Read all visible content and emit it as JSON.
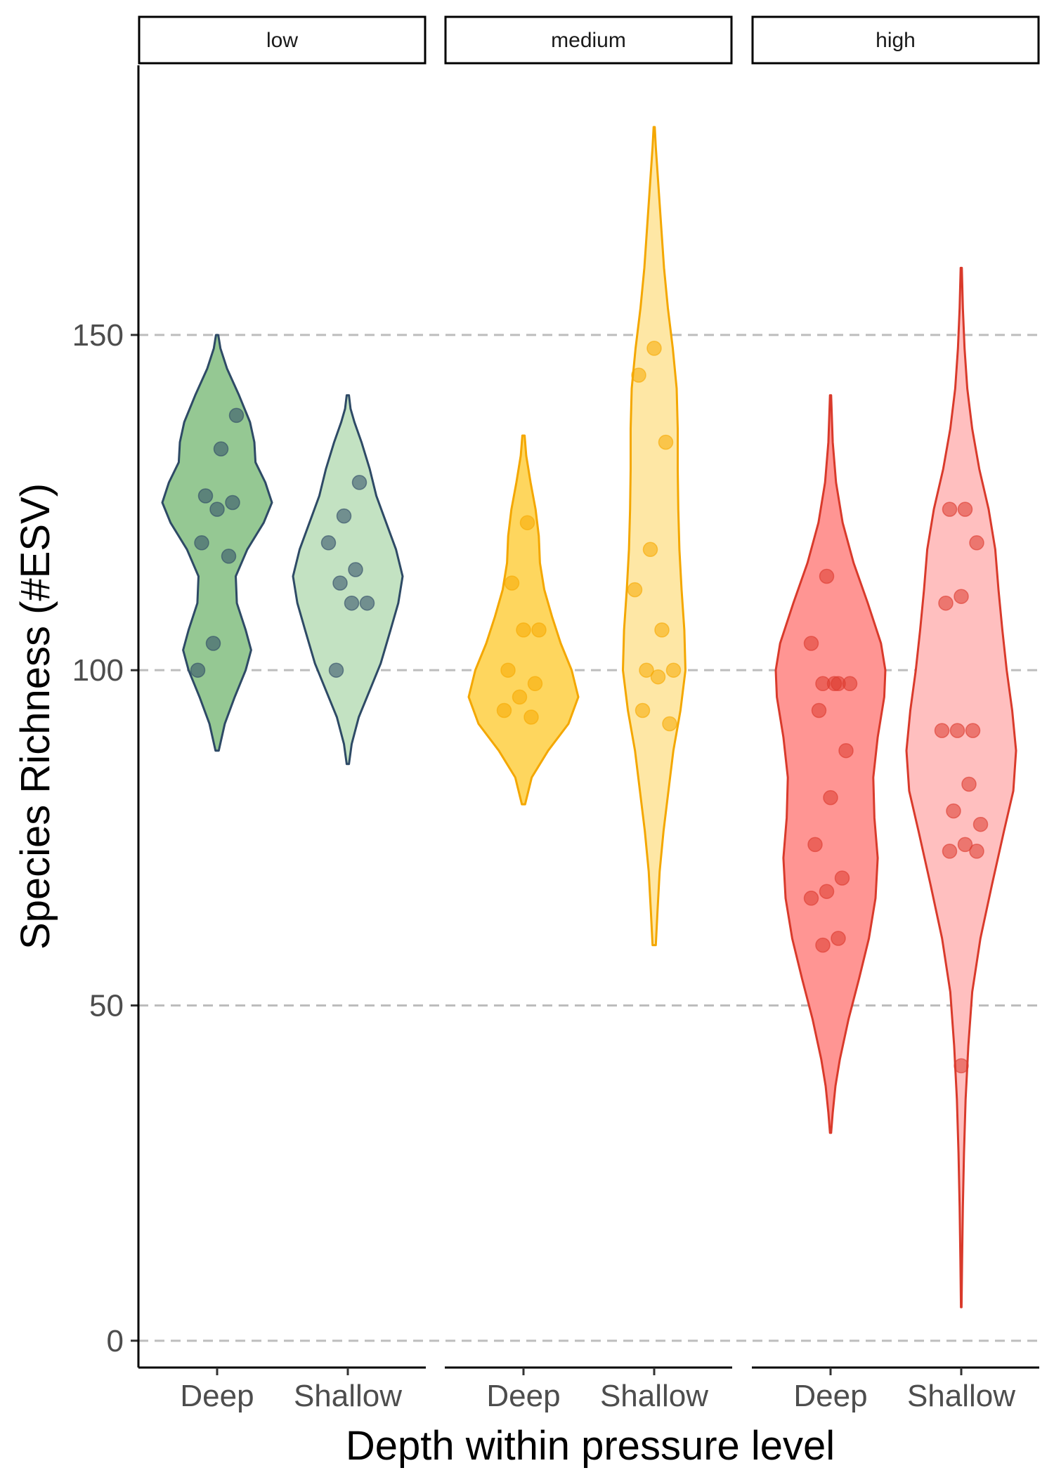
{
  "chart_data": {
    "type": "violin",
    "xlabel": "Depth within pressure level",
    "ylabel": "Species Richness (#ESV)",
    "ylim": [
      -4,
      190
    ],
    "yticks": [
      0,
      50,
      100,
      150
    ],
    "grid": "horizontal dashed at y ticks",
    "categories": [
      "Deep",
      "Shallow"
    ],
    "panels": [
      {
        "label": "low",
        "groups": [
          {
            "depth": "Deep",
            "fill": "#95c893",
            "outline": "#2e4a66",
            "point_color": "#2e4a66",
            "range": [
              88,
              150
            ],
            "density": [
              [
                88,
                0.03
              ],
              [
                92,
                0.14
              ],
              [
                96,
                0.32
              ],
              [
                100,
                0.52
              ],
              [
                103,
                0.62
              ],
              [
                106,
                0.52
              ],
              [
                110,
                0.36
              ],
              [
                114,
                0.34
              ],
              [
                118,
                0.55
              ],
              [
                122,
                0.85
              ],
              [
                125,
                1.0
              ],
              [
                128,
                0.88
              ],
              [
                131,
                0.7
              ],
              [
                134,
                0.68
              ],
              [
                137,
                0.6
              ],
              [
                141,
                0.4
              ],
              [
                145,
                0.18
              ],
              [
                148,
                0.06
              ],
              [
                150,
                0.02
              ]
            ],
            "points": [
              100,
              104,
              117,
              119,
              124,
              125,
              126,
              133,
              138
            ]
          },
          {
            "depth": "Shallow",
            "fill": "#c3e2c2",
            "outline": "#2e4a66",
            "point_color": "#2e4a66",
            "range": [
              86,
              141
            ],
            "density": [
              [
                86,
                0.02
              ],
              [
                89,
                0.07
              ],
              [
                93,
                0.2
              ],
              [
                97,
                0.4
              ],
              [
                101,
                0.6
              ],
              [
                106,
                0.78
              ],
              [
                110,
                0.92
              ],
              [
                114,
                1.0
              ],
              [
                118,
                0.88
              ],
              [
                122,
                0.7
              ],
              [
                126,
                0.52
              ],
              [
                130,
                0.4
              ],
              [
                134,
                0.25
              ],
              [
                137,
                0.12
              ],
              [
                139,
                0.05
              ],
              [
                141,
                0.02
              ]
            ],
            "points": [
              100,
              110,
              110,
              113,
              115,
              119,
              123,
              128
            ]
          }
        ]
      },
      {
        "label": "medium",
        "groups": [
          {
            "depth": "Deep",
            "fill": "#fed65e",
            "outline": "#f4a700",
            "point_color": "#f6a900",
            "range": [
              80,
              135
            ],
            "density": [
              [
                80,
                0.03
              ],
              [
                84,
                0.15
              ],
              [
                88,
                0.45
              ],
              [
                92,
                0.82
              ],
              [
                96,
                1.0
              ],
              [
                100,
                0.88
              ],
              [
                104,
                0.68
              ],
              [
                108,
                0.52
              ],
              [
                112,
                0.38
              ],
              [
                116,
                0.3
              ],
              [
                120,
                0.28
              ],
              [
                124,
                0.22
              ],
              [
                128,
                0.13
              ],
              [
                132,
                0.05
              ],
              [
                135,
                0.02
              ]
            ],
            "points": [
              93,
              94,
              96,
              98,
              100,
              106,
              106,
              113,
              122
            ]
          },
          {
            "depth": "Shallow",
            "fill": "#fee7a5",
            "outline": "#f4a700",
            "point_color": "#f6a900",
            "range": [
              59,
              181
            ],
            "density": [
              [
                59,
                0.03
              ],
              [
                64,
                0.06
              ],
              [
                70,
                0.1
              ],
              [
                76,
                0.17
              ],
              [
                82,
                0.26
              ],
              [
                88,
                0.35
              ],
              [
                94,
                0.48
              ],
              [
                100,
                0.57
              ],
              [
                106,
                0.55
              ],
              [
                112,
                0.5
              ],
              [
                118,
                0.46
              ],
              [
                124,
                0.44
              ],
              [
                130,
                0.43
              ],
              [
                136,
                0.43
              ],
              [
                142,
                0.41
              ],
              [
                148,
                0.34
              ],
              [
                154,
                0.25
              ],
              [
                160,
                0.18
              ],
              [
                166,
                0.13
              ],
              [
                172,
                0.08
              ],
              [
                178,
                0.03
              ],
              [
                181,
                0.01
              ]
            ],
            "points": [
              92,
              94,
              99,
              100,
              100,
              106,
              112,
              118,
              134,
              144,
              148
            ]
          }
        ]
      },
      {
        "label": "high",
        "groups": [
          {
            "depth": "Deep",
            "fill": "#ff9593",
            "outline": "#d93a2b",
            "point_color": "#dc3a2e",
            "range": [
              31,
              141
            ],
            "density": [
              [
                31,
                0.01
              ],
              [
                34,
                0.04
              ],
              [
                38,
                0.09
              ],
              [
                42,
                0.17
              ],
              [
                48,
                0.33
              ],
              [
                54,
                0.52
              ],
              [
                60,
                0.7
              ],
              [
                66,
                0.82
              ],
              [
                72,
                0.86
              ],
              [
                78,
                0.8
              ],
              [
                84,
                0.78
              ],
              [
                90,
                0.86
              ],
              [
                96,
                0.98
              ],
              [
                100,
                1.0
              ],
              [
                104,
                0.92
              ],
              [
                110,
                0.68
              ],
              [
                116,
                0.42
              ],
              [
                122,
                0.22
              ],
              [
                128,
                0.1
              ],
              [
                134,
                0.04
              ],
              [
                141,
                0.01
              ]
            ],
            "points": [
              59,
              60,
              66,
              67,
              69,
              74,
              81,
              88,
              94,
              98,
              98,
              98,
              98,
              104,
              114
            ]
          },
          {
            "depth": "Shallow",
            "fill": "#ffbfbf",
            "outline": "#d93a2b",
            "point_color": "#dc3a2e",
            "range": [
              5,
              160
            ],
            "density": [
              [
                5,
                0.005
              ],
              [
                12,
                0.015
              ],
              [
                20,
                0.03
              ],
              [
                28,
                0.05
              ],
              [
                36,
                0.08
              ],
              [
                44,
                0.13
              ],
              [
                52,
                0.2
              ],
              [
                60,
                0.35
              ],
              [
                68,
                0.56
              ],
              [
                76,
                0.78
              ],
              [
                82,
                0.95
              ],
              [
                88,
                1.0
              ],
              [
                94,
                0.93
              ],
              [
                100,
                0.83
              ],
              [
                106,
                0.75
              ],
              [
                112,
                0.68
              ],
              [
                118,
                0.62
              ],
              [
                124,
                0.5
              ],
              [
                130,
                0.33
              ],
              [
                136,
                0.2
              ],
              [
                142,
                0.11
              ],
              [
                148,
                0.06
              ],
              [
                154,
                0.03
              ],
              [
                160,
                0.01
              ]
            ],
            "points": [
              41,
              73,
              73,
              74,
              77,
              79,
              83,
              91,
              91,
              91,
              110,
              111,
              119,
              124,
              124
            ]
          }
        ]
      }
    ]
  }
}
